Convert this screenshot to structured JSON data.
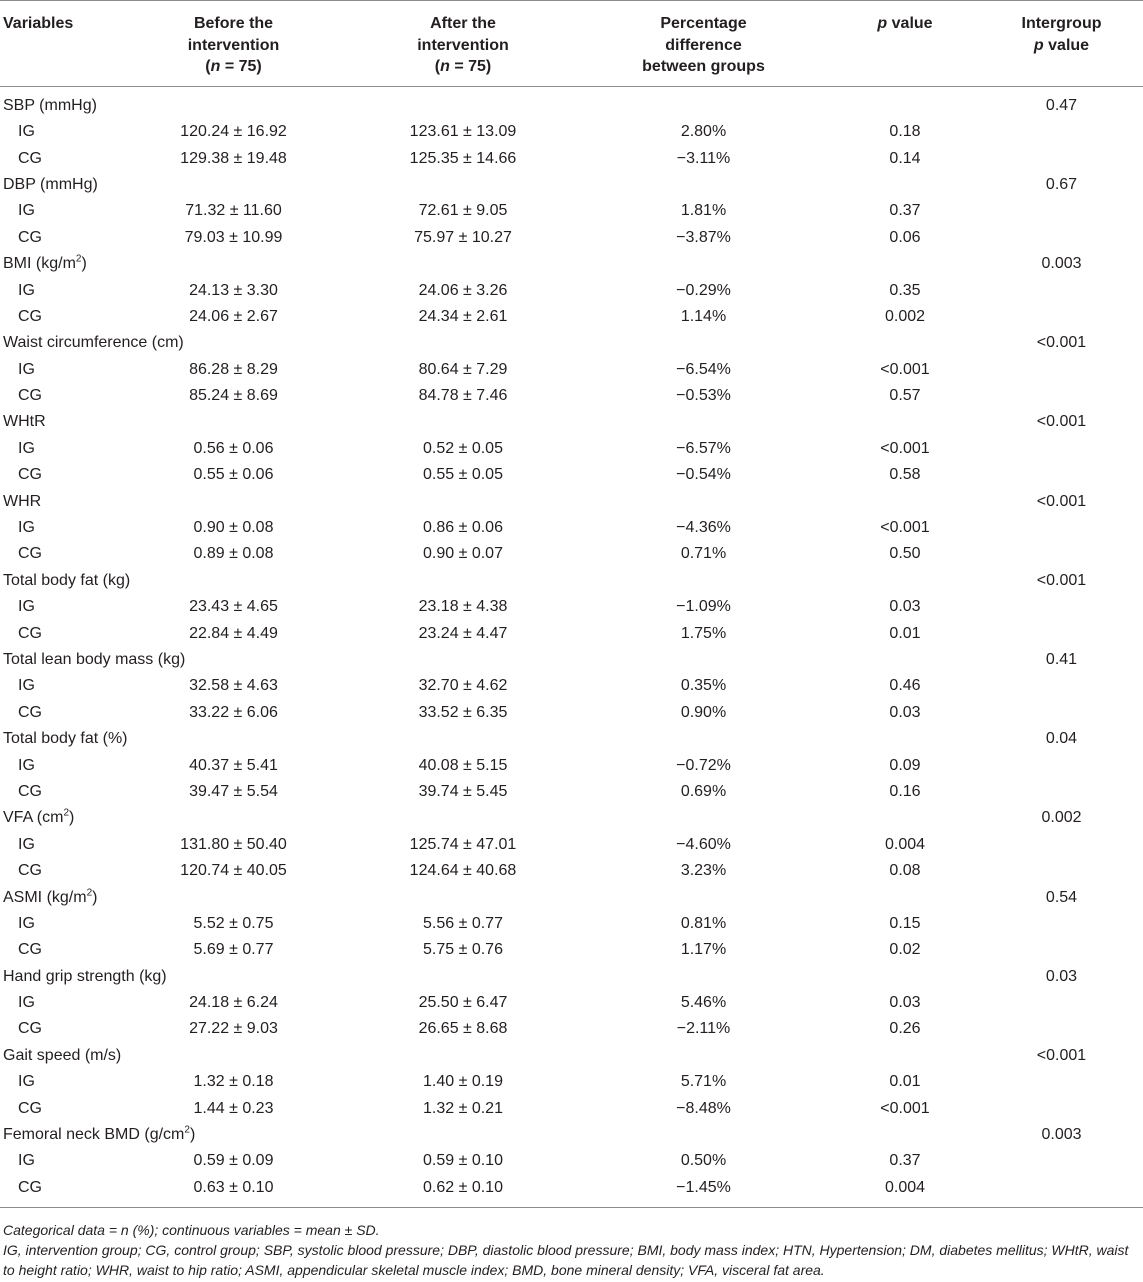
{
  "headers": {
    "variables": "Variables",
    "before_l1": "Before the",
    "before_l2": "intervention",
    "before_n_prefix": "(",
    "before_n": "n",
    "before_n_suffix": " = 75)",
    "after_l1": "After the",
    "after_l2": "intervention",
    "after_n_prefix": "(",
    "after_n": "n",
    "after_n_suffix": " = 75)",
    "pct_l1": "Percentage",
    "pct_l2": "difference",
    "pct_l3": "between groups",
    "p_italic": "p",
    "p_rest": " value",
    "inter_l1": "Intergroup",
    "inter_p_italic": "p",
    "inter_p_rest": " value"
  },
  "rows": [
    {
      "type": "var",
      "label": "SBP (mmHg)",
      "sup": "",
      "label_after": "",
      "intergroup": "0.47"
    },
    {
      "type": "grp",
      "label": "IG",
      "before": "120.24 ± 16.92",
      "after": "123.61 ± 13.09",
      "pct": "2.80%",
      "p": "0.18"
    },
    {
      "type": "grp",
      "label": "CG",
      "before": "129.38 ± 19.48",
      "after": "125.35 ± 14.66",
      "pct": "−3.11%",
      "p": "0.14"
    },
    {
      "type": "var",
      "label": "DBP (mmHg)",
      "sup": "",
      "label_after": "",
      "intergroup": "0.67"
    },
    {
      "type": "grp",
      "label": "IG",
      "before": "71.32 ± 11.60",
      "after": "72.61 ± 9.05",
      "pct": "1.81%",
      "p": "0.37"
    },
    {
      "type": "grp",
      "label": "CG",
      "before": "79.03 ± 10.99",
      "after": "75.97 ± 10.27",
      "pct": "−3.87%",
      "p": "0.06"
    },
    {
      "type": "var",
      "label": "BMI (kg/m",
      "sup": "2",
      "label_after": ")",
      "intergroup": "0.003"
    },
    {
      "type": "grp",
      "label": "IG",
      "before": "24.13 ± 3.30",
      "after": "24.06 ± 3.26",
      "pct": "−0.29%",
      "p": "0.35"
    },
    {
      "type": "grp",
      "label": "CG",
      "before": "24.06 ± 2.67",
      "after": "24.34 ± 2.61",
      "pct": "1.14%",
      "p": "0.002"
    },
    {
      "type": "var",
      "label": "Waist circumference (cm)",
      "sup": "",
      "label_after": "",
      "intergroup": "<0.001"
    },
    {
      "type": "grp",
      "label": "IG",
      "before": "86.28 ± 8.29",
      "after": "80.64 ± 7.29",
      "pct": "−6.54%",
      "p": "<0.001"
    },
    {
      "type": "grp",
      "label": "CG",
      "before": "85.24 ± 8.69",
      "after": "84.78 ± 7.46",
      "pct": "−0.53%",
      "p": "0.57"
    },
    {
      "type": "var",
      "label": "WHtR",
      "sup": "",
      "label_after": "",
      "intergroup": "<0.001"
    },
    {
      "type": "grp",
      "label": "IG",
      "before": "0.56 ± 0.06",
      "after": "0.52 ± 0.05",
      "pct": "−6.57%",
      "p": "<0.001"
    },
    {
      "type": "grp",
      "label": "CG",
      "before": "0.55 ± 0.06",
      "after": "0.55 ± 0.05",
      "pct": "−0.54%",
      "p": "0.58"
    },
    {
      "type": "var",
      "label": "WHR",
      "sup": "",
      "label_after": "",
      "intergroup": "<0.001"
    },
    {
      "type": "grp",
      "label": "IG",
      "before": "0.90 ± 0.08",
      "after": "0.86 ± 0.06",
      "pct": "−4.36%",
      "p": "<0.001"
    },
    {
      "type": "grp",
      "label": "CG",
      "before": "0.89 ± 0.08",
      "after": "0.90 ± 0.07",
      "pct": "0.71%",
      "p": "0.50"
    },
    {
      "type": "var",
      "label": "Total body fat (kg)",
      "sup": "",
      "label_after": "",
      "intergroup": "<0.001"
    },
    {
      "type": "grp",
      "label": "IG",
      "before": "23.43 ± 4.65",
      "after": "23.18 ± 4.38",
      "pct": "−1.09%",
      "p": "0.03"
    },
    {
      "type": "grp",
      "label": "CG",
      "before": "22.84 ± 4.49",
      "after": "23.24 ± 4.47",
      "pct": "1.75%",
      "p": "0.01"
    },
    {
      "type": "var",
      "label": "Total lean body mass (kg)",
      "sup": "",
      "label_after": "",
      "intergroup": "0.41"
    },
    {
      "type": "grp",
      "label": "IG",
      "before": "32.58 ± 4.63",
      "after": "32.70 ± 4.62",
      "pct": "0.35%",
      "p": "0.46"
    },
    {
      "type": "grp",
      "label": "CG",
      "before": "33.22 ± 6.06",
      "after": "33.52 ± 6.35",
      "pct": "0.90%",
      "p": "0.03"
    },
    {
      "type": "var",
      "label": "Total body fat (%)",
      "sup": "",
      "label_after": "",
      "intergroup": "0.04"
    },
    {
      "type": "grp",
      "label": "IG",
      "before": "40.37 ± 5.41",
      "after": "40.08 ± 5.15",
      "pct": "−0.72%",
      "p": "0.09"
    },
    {
      "type": "grp",
      "label": "CG",
      "before": "39.47 ± 5.54",
      "after": "39.74 ± 5.45",
      "pct": "0.69%",
      "p": "0.16"
    },
    {
      "type": "var",
      "label": "VFA (cm",
      "sup": "2",
      "label_after": ")",
      "intergroup": "0.002"
    },
    {
      "type": "grp",
      "label": "IG",
      "before": "131.80 ± 50.40",
      "after": "125.74 ± 47.01",
      "pct": "−4.60%",
      "p": "0.004"
    },
    {
      "type": "grp",
      "label": "CG",
      "before": "120.74 ± 40.05",
      "after": "124.64 ± 40.68",
      "pct": "3.23%",
      "p": "0.08"
    },
    {
      "type": "var",
      "label": "ASMI (kg/m",
      "sup": "2",
      "label_after": ")",
      "intergroup": "0.54"
    },
    {
      "type": "grp",
      "label": "IG",
      "before": "5.52 ± 0.75",
      "after": "5.56 ± 0.77",
      "pct": "0.81%",
      "p": "0.15"
    },
    {
      "type": "grp",
      "label": "CG",
      "before": "5.69 ± 0.77",
      "after": "5.75 ± 0.76",
      "pct": "1.17%",
      "p": "0.02"
    },
    {
      "type": "var",
      "label": "Hand grip strength (kg)",
      "sup": "",
      "label_after": "",
      "intergroup": "0.03"
    },
    {
      "type": "grp",
      "label": "IG",
      "before": "24.18 ± 6.24",
      "after": "25.50 ± 6.47",
      "pct": "5.46%",
      "p": "0.03"
    },
    {
      "type": "grp",
      "label": "CG",
      "before": "27.22 ± 9.03",
      "after": "26.65 ± 8.68",
      "pct": "−2.11%",
      "p": "0.26"
    },
    {
      "type": "var",
      "label": "Gait speed (m/s)",
      "sup": "",
      "label_after": "",
      "intergroup": "<0.001"
    },
    {
      "type": "grp",
      "label": "IG",
      "before": "1.32 ± 0.18",
      "after": "1.40 ± 0.19",
      "pct": "5.71%",
      "p": "0.01"
    },
    {
      "type": "grp",
      "label": "CG",
      "before": "1.44 ± 0.23",
      "after": "1.32 ± 0.21",
      "pct": "−8.48%",
      "p": "<0.001"
    },
    {
      "type": "var",
      "label": "Femoral neck BMD (g/cm",
      "sup": "2",
      "label_after": ")",
      "intergroup": "0.003"
    },
    {
      "type": "grp",
      "label": "IG",
      "before": "0.59 ± 0.09",
      "after": "0.59 ± 0.10",
      "pct": "0.50%",
      "p": "0.37"
    },
    {
      "type": "grp",
      "label": "CG",
      "before": "0.63 ± 0.10",
      "after": "0.62 ± 0.10",
      "pct": "−1.45%",
      "p": "0.004"
    }
  ],
  "footnotes": {
    "line1": "Categorical data = n (%); continuous variables = mean ± SD.",
    "line2": "IG, intervention group; CG, control group; SBP, systolic blood pressure; DBP, diastolic blood pressure; BMI, body mass index; HTN, Hypertension; DM, diabetes mellitus; WHtR, waist to height ratio; WHR, waist to hip ratio; ASMI, appendicular skeletal muscle index; BMD, bone mineral density; VFA, visceral fat area."
  }
}
